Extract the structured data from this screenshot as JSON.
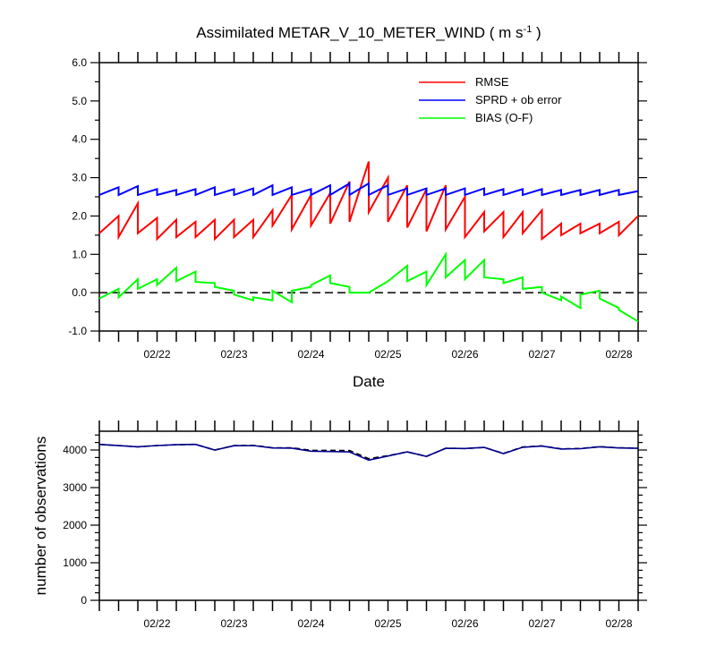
{
  "title": "Assimilated METAR_V_10_METER_WIND",
  "title_units_open": " ( m s",
  "title_units_exp": "-1",
  "title_units_close": " )",
  "chart_data": [
    {
      "type": "line",
      "xlabel": "Date",
      "ylabel": "",
      "xlim": [
        0,
        7.0
      ],
      "ylim": [
        -1.0,
        6.0
      ],
      "x_tick_labels": [
        "02/22",
        "02/23",
        "02/24",
        "02/25",
        "02/26",
        "02/27",
        "02/28"
      ],
      "x_tick_values": [
        0.75,
        1.75,
        2.75,
        3.75,
        4.75,
        5.75,
        6.75
      ],
      "y_tick_values": [
        -1.0,
        0.0,
        1.0,
        2.0,
        3.0,
        4.0,
        5.0,
        6.0
      ],
      "y_tick_labels": [
        "-1.0",
        "0.0",
        "1.0",
        "2.0",
        "3.0",
        "4.0",
        "5.0",
        "6.0"
      ],
      "zero_line": "dashed",
      "legend_position": "top-right",
      "series": [
        {
          "name": "RMSE",
          "color": "#ff0000",
          "x": [
            0,
            0.25,
            0.25,
            0.5,
            0.5,
            0.75,
            0.75,
            1.0,
            1.0,
            1.25,
            1.25,
            1.5,
            1.5,
            1.75,
            1.75,
            2.0,
            2.0,
            2.25,
            2.25,
            2.5,
            2.5,
            2.75,
            2.75,
            3.0,
            3.0,
            3.25,
            3.25,
            3.5,
            3.5,
            3.75,
            3.75,
            4.0,
            4.0,
            4.25,
            4.25,
            4.5,
            4.5,
            4.75,
            4.75,
            5.0,
            5.0,
            5.25,
            5.25,
            5.5,
            5.5,
            5.75,
            5.75,
            6.0,
            6.0,
            6.25,
            6.25,
            6.5,
            6.5,
            6.75,
            6.75,
            7.0
          ],
          "y": [
            1.55,
            2.0,
            1.45,
            2.33,
            1.55,
            1.95,
            1.4,
            1.9,
            1.45,
            1.85,
            1.45,
            1.9,
            1.4,
            1.9,
            1.45,
            1.9,
            1.45,
            2.15,
            1.75,
            2.55,
            1.65,
            2.55,
            1.75,
            2.6,
            1.8,
            2.9,
            1.85,
            3.42,
            2.1,
            3.0,
            1.85,
            2.8,
            1.7,
            2.7,
            1.6,
            2.8,
            1.65,
            2.5,
            1.45,
            2.1,
            1.6,
            2.1,
            1.45,
            2.1,
            1.55,
            2.15,
            1.4,
            1.8,
            1.5,
            1.8,
            1.55,
            1.8,
            1.55,
            1.85,
            1.5,
            2.0
          ]
        },
        {
          "name": "SPRD + ob error",
          "color": "#0000ff",
          "x": [
            0,
            0.25,
            0.25,
            0.5,
            0.5,
            0.75,
            0.75,
            1.0,
            1.0,
            1.25,
            1.25,
            1.5,
            1.5,
            1.75,
            1.75,
            2.0,
            2.0,
            2.25,
            2.25,
            2.5,
            2.5,
            2.75,
            2.75,
            3.0,
            3.0,
            3.25,
            3.25,
            3.5,
            3.5,
            3.75,
            3.75,
            4.0,
            4.0,
            4.25,
            4.25,
            4.5,
            4.5,
            4.75,
            4.75,
            5.0,
            5.0,
            5.25,
            5.25,
            5.5,
            5.5,
            5.75,
            5.75,
            6.0,
            6.0,
            6.25,
            6.25,
            6.5,
            6.5,
            6.75,
            6.75,
            7.0
          ],
          "y": [
            2.55,
            2.75,
            2.55,
            2.78,
            2.55,
            2.7,
            2.55,
            2.68,
            2.55,
            2.7,
            2.55,
            2.75,
            2.55,
            2.7,
            2.55,
            2.72,
            2.55,
            2.8,
            2.55,
            2.75,
            2.55,
            2.7,
            2.55,
            2.8,
            2.55,
            2.85,
            2.55,
            2.85,
            2.55,
            2.8,
            2.55,
            2.72,
            2.55,
            2.72,
            2.55,
            2.72,
            2.55,
            2.72,
            2.55,
            2.72,
            2.55,
            2.7,
            2.55,
            2.7,
            2.55,
            2.7,
            2.55,
            2.68,
            2.55,
            2.68,
            2.55,
            2.68,
            2.55,
            2.68,
            2.55,
            2.65
          ]
        },
        {
          "name": "BIAS (O-F)",
          "color": "#00ff00",
          "x": [
            0,
            0.25,
            0.25,
            0.5,
            0.5,
            0.75,
            0.75,
            1.0,
            1.0,
            1.25,
            1.25,
            1.5,
            1.5,
            1.75,
            1.75,
            2.0,
            2.0,
            2.25,
            2.25,
            2.5,
            2.5,
            2.75,
            2.75,
            3.0,
            3.0,
            3.25,
            3.25,
            3.5,
            3.5,
            3.75,
            3.75,
            4.0,
            4.0,
            4.25,
            4.25,
            4.5,
            4.5,
            4.75,
            4.75,
            5.0,
            5.0,
            5.25,
            5.25,
            5.5,
            5.5,
            5.75,
            5.75,
            6.0,
            6.0,
            6.25,
            6.25,
            6.5,
            6.5,
            6.75,
            6.75,
            7.0
          ],
          "y": [
            -0.15,
            0.1,
            -0.12,
            0.35,
            0.1,
            0.35,
            0.2,
            0.65,
            0.3,
            0.55,
            0.28,
            0.25,
            0.15,
            0.05,
            -0.05,
            -0.2,
            -0.12,
            -0.2,
            0.05,
            -0.25,
            0.05,
            0.15,
            0.2,
            0.45,
            0.25,
            0.15,
            0.0,
            0.0,
            0.0,
            0.3,
            0.3,
            0.7,
            0.3,
            0.55,
            0.2,
            1.0,
            0.4,
            0.85,
            0.35,
            0.85,
            0.4,
            0.35,
            0.25,
            0.4,
            0.1,
            0.15,
            0.0,
            -0.2,
            -0.1,
            -0.4,
            -0.05,
            0.05,
            -0.15,
            -0.4,
            -0.45,
            -0.75
          ]
        }
      ]
    },
    {
      "type": "line",
      "xlabel": "",
      "ylabel": "number of observations",
      "xlim": [
        0,
        7.0
      ],
      "ylim": [
        0,
        4500
      ],
      "x_tick_labels": [
        "02/22",
        "02/23",
        "02/24",
        "02/25",
        "02/26",
        "02/27",
        "02/28"
      ],
      "x_tick_values": [
        0.75,
        1.75,
        2.75,
        3.75,
        4.75,
        5.75,
        6.75
      ],
      "y_tick_values": [
        0,
        1000,
        2000,
        3000,
        4000
      ],
      "y_tick_labels": [
        "0",
        "1000",
        "2000",
        "3000",
        "4000"
      ],
      "series": [
        {
          "style": "dashed",
          "color": "#000000",
          "x": [
            0,
            0.5,
            0.75,
            1.0,
            1.25,
            1.5,
            1.75,
            2.0,
            2.25,
            2.5,
            2.75,
            3.0,
            3.25,
            3.5,
            3.75,
            4.0,
            4.25,
            4.5,
            4.75,
            5.0,
            5.25,
            5.5,
            5.75,
            6.0,
            6.25,
            6.5,
            6.75,
            7.0
          ],
          "y": [
            4150,
            4085,
            4120,
            4140,
            4150,
            4000,
            4120,
            4125,
            4060,
            4060,
            3990,
            3990,
            3985,
            3770,
            3850,
            3950,
            3830,
            4045,
            4040,
            4070,
            3910,
            4080,
            4110,
            4030,
            4040,
            4090,
            4060,
            4050
          ]
        },
        {
          "style": "solid",
          "color": "#00008b",
          "x": [
            0,
            0.5,
            0.75,
            1.0,
            1.25,
            1.5,
            1.75,
            2.0,
            2.25,
            2.5,
            2.75,
            3.0,
            3.25,
            3.5,
            3.75,
            4.0,
            4.25,
            4.5,
            4.75,
            5.0,
            5.25,
            5.5,
            5.75,
            6.0,
            6.25,
            6.5,
            6.75,
            7.0
          ],
          "y": [
            4150,
            4085,
            4120,
            4140,
            4150,
            4000,
            4115,
            4120,
            4055,
            4050,
            3970,
            3960,
            3950,
            3730,
            3840,
            3950,
            3830,
            4045,
            4040,
            4070,
            3905,
            4075,
            4105,
            4025,
            4035,
            4085,
            4055,
            4045
          ]
        }
      ]
    }
  ]
}
